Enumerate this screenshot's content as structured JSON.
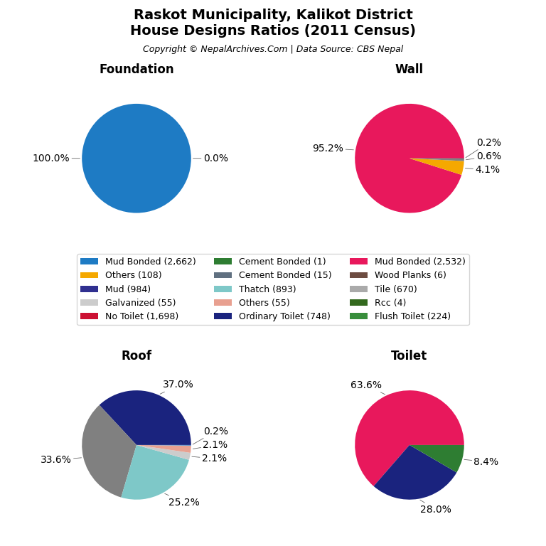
{
  "title": "Raskot Municipality, Kalikot District\nHouse Designs Ratios (2011 Census)",
  "subtitle": "Copyright © NepalArchives.Com | Data Source: CBS Nepal",
  "legend": "center",
  "series": [
    {
      "name": "Mud Bonded (2,662)",
      "color": "#1e7bc4"
    },
    {
      "name": "Others (108)",
      "color": "#f5a800"
    },
    {
      "name": "Mud (984)",
      "color": "#303090"
    },
    {
      "name": "Galvanized (55)",
      "color": "#cccccc"
    },
    {
      "name": "No Toilet (1,698)",
      "color": "#cc1133"
    },
    {
      "name": "Cement Bonded (1)",
      "color": "#2e7d32"
    },
    {
      "name": "Cement Bonded (15)",
      "color": "#607080"
    },
    {
      "name": "Thatch (893)",
      "color": "#7ec8c8"
    },
    {
      "name": "Others (55)",
      "color": "#e8a090"
    },
    {
      "name": "Ordinary Toilet (748)",
      "color": "#1a237e"
    },
    {
      "name": "Mud Bonded (2,532)",
      "color": "#e8185c"
    },
    {
      "name": "Wood Planks (6)",
      "color": "#6d4c41"
    },
    {
      "name": "Tile (670)",
      "color": "#aaaaaa"
    },
    {
      "name": "Rcc (4)",
      "color": "#33691e"
    },
    {
      "name": "Flush Toilet (224)",
      "color": "#388e3c"
    }
  ],
  "chart_data": [
    {
      "type": "pie",
      "title": "Foundation",
      "values": [
        100.0,
        0.0
      ],
      "value_labels": [
        "100.0%",
        "0.0%"
      ],
      "colors": [
        "#1e7bc4",
        "#1e7bc4"
      ]
    },
    {
      "type": "pie",
      "title": "Wall",
      "values": [
        95.2,
        4.1,
        0.6,
        0.2
      ],
      "value_labels": [
        "95.2%",
        "4.1%",
        "0.6%",
        "0.2%"
      ],
      "colors": [
        "#e8185c",
        "#f5a800",
        "#808080",
        "#404040"
      ]
    },
    {
      "type": "pie",
      "title": "Roof",
      "values": [
        37.0,
        33.6,
        25.2,
        2.1,
        2.1,
        0.2
      ],
      "value_labels": [
        "37.0%",
        "33.6%",
        "25.2%",
        "2.1%",
        "2.1%",
        "0.2%"
      ],
      "colors": [
        "#1a237e",
        "#808080",
        "#7ec8c8",
        "#cccccc",
        "#e8a090",
        "#4488cc"
      ]
    },
    {
      "type": "pie",
      "title": "Toilet",
      "values": [
        63.6,
        28.0,
        8.4
      ],
      "value_labels": [
        "63.6%",
        "28.0%",
        "8.4%"
      ],
      "colors": [
        "#e8185c",
        "#1a237e",
        "#2e7d32"
      ]
    }
  ]
}
